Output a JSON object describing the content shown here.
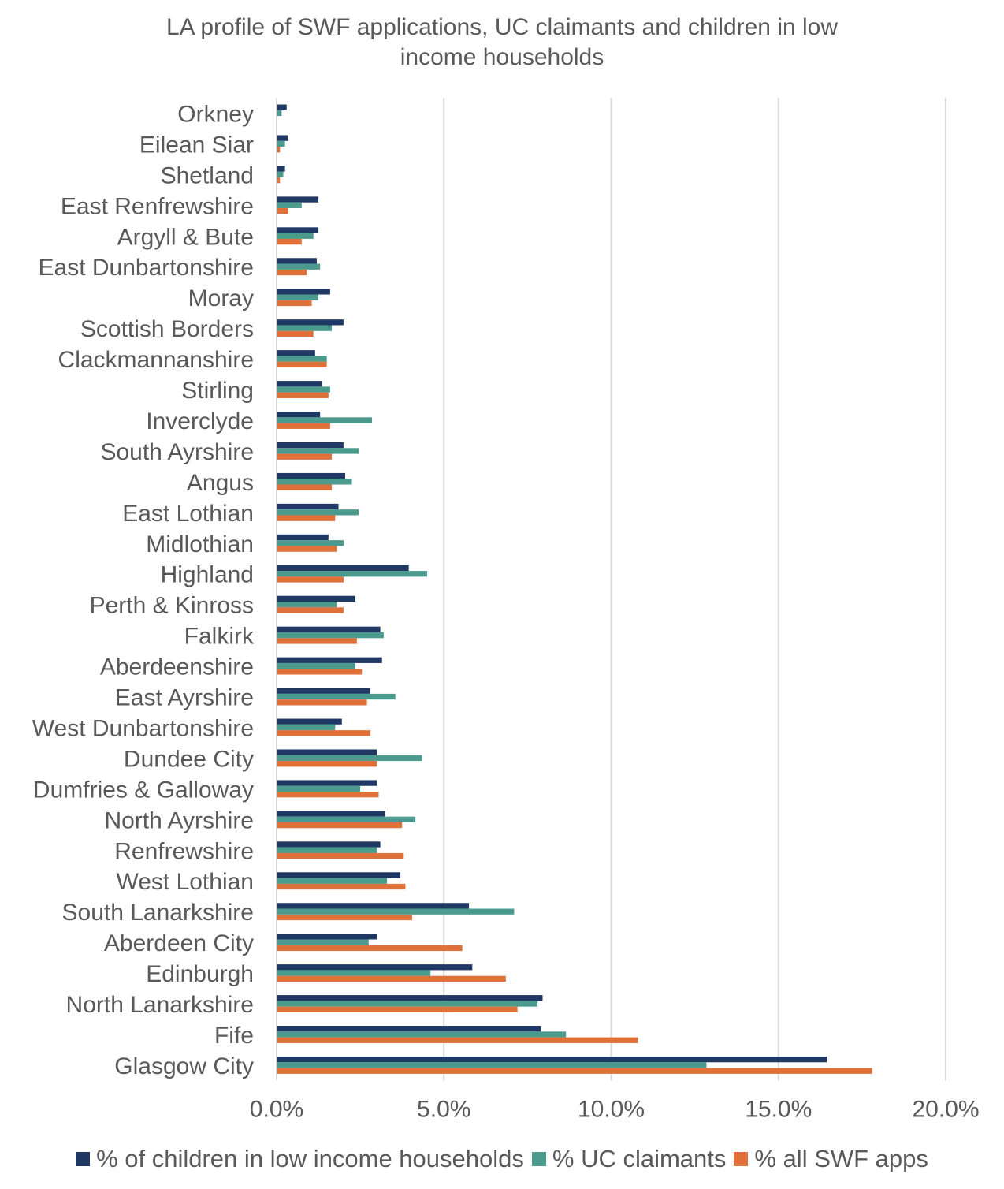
{
  "chart_data": {
    "type": "bar",
    "orientation": "horizontal",
    "title": "LA profile of SWF applications, UC claimants and children in low income households",
    "title_lines": [
      "LA profile of SWF applications, UC claimants and children in low",
      "income households"
    ],
    "xlabel": "",
    "ylabel": "",
    "xlim": [
      0,
      20
    ],
    "x_ticks": [
      "0.0%",
      "5.0%",
      "10.0%",
      "15.0%",
      "20.0%"
    ],
    "grid": "vertical",
    "legend_position": "bottom",
    "categories": [
      "Orkney",
      "Eilean Siar",
      "Shetland",
      "East Renfrewshire",
      "Argyll & Bute",
      "East Dunbartonshire",
      "Moray",
      "Scottish Borders",
      "Clackmannanshire",
      "Stirling",
      "Inverclyde",
      "South Ayrshire",
      "Angus",
      "East Lothian",
      "Midlothian",
      "Highland",
      "Perth & Kinross",
      "Falkirk",
      "Aberdeenshire",
      "East Ayrshire",
      "West Dunbartonshire",
      "Dundee City",
      "Dumfries & Galloway",
      "North Ayrshire",
      "Renfrewshire",
      "West Lothian",
      "South Lanarkshire",
      "Aberdeen City",
      "Edinburgh",
      "North Lanarkshire",
      "Fife",
      "Glasgow City"
    ],
    "series": [
      {
        "name": "% of children in low income households",
        "color": "#203864",
        "values": [
          0.3,
          0.35,
          0.25,
          1.25,
          1.25,
          1.2,
          1.6,
          2.0,
          1.15,
          1.35,
          1.3,
          2.0,
          2.05,
          1.85,
          1.55,
          3.95,
          2.35,
          3.1,
          3.15,
          2.8,
          1.95,
          3.0,
          3.0,
          3.25,
          3.1,
          3.7,
          5.75,
          3.0,
          5.85,
          7.95,
          7.9,
          16.45
        ]
      },
      {
        "name": "% UC claimants",
        "color": "#4a9a8e",
        "values": [
          0.15,
          0.25,
          0.2,
          0.75,
          1.1,
          1.3,
          1.25,
          1.65,
          1.5,
          1.6,
          2.85,
          2.45,
          2.25,
          2.45,
          2.0,
          4.5,
          1.8,
          3.2,
          2.35,
          3.55,
          1.75,
          4.35,
          2.5,
          4.15,
          3.0,
          3.3,
          7.1,
          2.75,
          4.6,
          7.8,
          8.65,
          12.85
        ]
      },
      {
        "name": "% all SWF apps",
        "color": "#e0703a",
        "values": [
          0.0,
          0.1,
          0.1,
          0.35,
          0.75,
          0.9,
          1.05,
          1.1,
          1.5,
          1.55,
          1.6,
          1.65,
          1.65,
          1.75,
          1.8,
          2.0,
          2.0,
          2.4,
          2.55,
          2.7,
          2.8,
          3.0,
          3.05,
          3.75,
          3.8,
          3.85,
          4.05,
          5.55,
          6.85,
          7.2,
          10.8,
          17.8
        ]
      }
    ]
  }
}
